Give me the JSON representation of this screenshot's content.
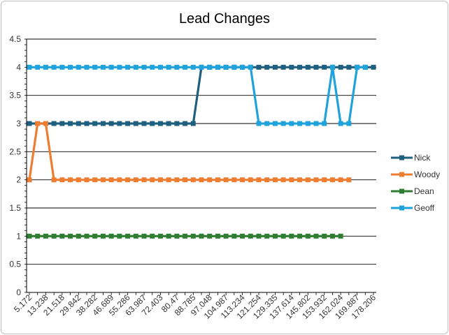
{
  "chart_data": {
    "type": "line",
    "title": "Lead Changes",
    "xlabel": "",
    "ylabel": "",
    "ylim": [
      0,
      4.5
    ],
    "yticks": [
      "0",
      "0.5",
      "1",
      "1.5",
      "2",
      "2.5",
      "3",
      "3.5",
      "4",
      "4.5"
    ],
    "x_tick_labels": [
      "5.172",
      "13.238",
      "21.518",
      "29.842",
      "38.282",
      "46.689",
      "55.286",
      "63.987",
      "72.403",
      "80.47",
      "88.785",
      "97.048",
      "104.987",
      "113.234",
      "121.254",
      "129.335",
      "137.614",
      "145.802",
      "153.932",
      "162.024",
      "169.887",
      "178.206"
    ],
    "num_points": 43,
    "grid": "horizontal",
    "legend_position": "right",
    "series": [
      {
        "name": "Nick",
        "color": "#1f5f7f",
        "values": [
          3,
          3,
          3,
          3,
          3,
          3,
          3,
          3,
          3,
          3,
          3,
          3,
          3,
          3,
          3,
          3,
          3,
          3,
          3,
          3,
          3,
          4,
          4,
          4,
          4,
          4,
          4,
          4,
          4,
          4,
          4,
          4,
          4,
          4,
          4,
          4,
          4,
          4,
          4,
          4,
          4,
          4,
          4
        ]
      },
      {
        "name": "Woody",
        "color": "#ed7d31",
        "values": [
          2,
          3,
          3,
          2,
          2,
          2,
          2,
          2,
          2,
          2,
          2,
          2,
          2,
          2,
          2,
          2,
          2,
          2,
          2,
          2,
          2,
          2,
          2,
          2,
          2,
          2,
          2,
          2,
          2,
          2,
          2,
          2,
          2,
          2,
          2,
          2,
          2,
          2,
          2,
          2
        ]
      },
      {
        "name": "Dean",
        "color": "#2e7d32",
        "values": [
          1,
          1,
          1,
          1,
          1,
          1,
          1,
          1,
          1,
          1,
          1,
          1,
          1,
          1,
          1,
          1,
          1,
          1,
          1,
          1,
          1,
          1,
          1,
          1,
          1,
          1,
          1,
          1,
          1,
          1,
          1,
          1,
          1,
          1,
          1,
          1,
          1,
          1,
          1
        ]
      },
      {
        "name": "Geoff",
        "color": "#1fa3da",
        "values": [
          4,
          4,
          4,
          4,
          4,
          4,
          4,
          4,
          4,
          4,
          4,
          4,
          4,
          4,
          4,
          4,
          4,
          4,
          4,
          4,
          4,
          4,
          4,
          4,
          4,
          4,
          4,
          4,
          3,
          3,
          3,
          3,
          3,
          3,
          3,
          3,
          3,
          4,
          3,
          3,
          4,
          4
        ]
      }
    ]
  }
}
